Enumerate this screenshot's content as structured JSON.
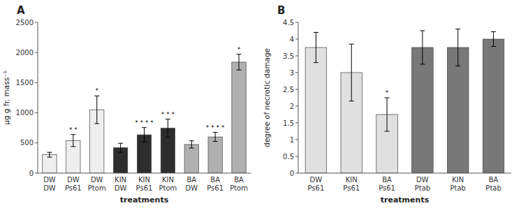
{
  "chart_data": [
    {
      "type": "bar",
      "title": "A",
      "categories": [
        "DW\nDW",
        "DW\nPs61",
        "DW\nPtom",
        "KIN\nDW",
        "KIN\nPs61",
        "KIN\nPtom",
        "BA\nDW",
        "BA\nPs61",
        "BA\nPtom"
      ],
      "values": [
        305,
        540,
        1050,
        420,
        635,
        745,
        475,
        600,
        1840
      ],
      "errors": [
        40,
        100,
        230,
        75,
        120,
        150,
        60,
        75,
        130
      ],
      "colors": [
        "#eeeeee",
        "#eeeeee",
        "#eeeeee",
        "#2d2d2d",
        "#2d2d2d",
        "#2d2d2d",
        "#b0b0b0",
        "#b0b0b0",
        "#b0b0b0"
      ],
      "annotations": [
        {
          "category": "DW\nPs61",
          "text": "* *"
        },
        {
          "category": "DW\nPtom",
          "text": "*"
        },
        {
          "category": "KIN\nPs61",
          "text": "* * * *"
        },
        {
          "category": "KIN\nPtom",
          "text": "* * *"
        },
        {
          "category": "BA\nPs61",
          "text": "* * * *"
        },
        {
          "category": "BA\nPtom",
          "text": "*"
        }
      ],
      "y_label": "µg g fr. mass⁻¹",
      "x_label": "treatments",
      "ylim": [
        0,
        2500
      ],
      "yticks": [
        0,
        500,
        1000,
        1500,
        2000,
        2500
      ],
      "grid": false
    },
    {
      "type": "bar",
      "title": "B",
      "categories": [
        "DW\nPs61",
        "KIN\nPs61",
        "BA\nPs61",
        "DW\nPtab",
        "KIN\nPtab",
        "BA\nPtab"
      ],
      "values": [
        3.75,
        3.0,
        1.75,
        3.75,
        3.75,
        4.0
      ],
      "errors": [
        0.45,
        0.85,
        0.5,
        0.5,
        0.55,
        0.22
      ],
      "colors": [
        "#e0e0e0",
        "#e0e0e0",
        "#e0e0e0",
        "#787878",
        "#787878",
        "#787878"
      ],
      "annotations": [
        {
          "category": "BA\nPs61",
          "text": "*"
        }
      ],
      "y_label": "degree of necrotic damage",
      "x_label": "treatments",
      "ylim": [
        0,
        4.5
      ],
      "yticks": [
        0,
        0.5,
        1,
        1.5,
        2,
        2.5,
        3,
        3.5,
        4,
        4.5
      ],
      "grid": false
    }
  ]
}
